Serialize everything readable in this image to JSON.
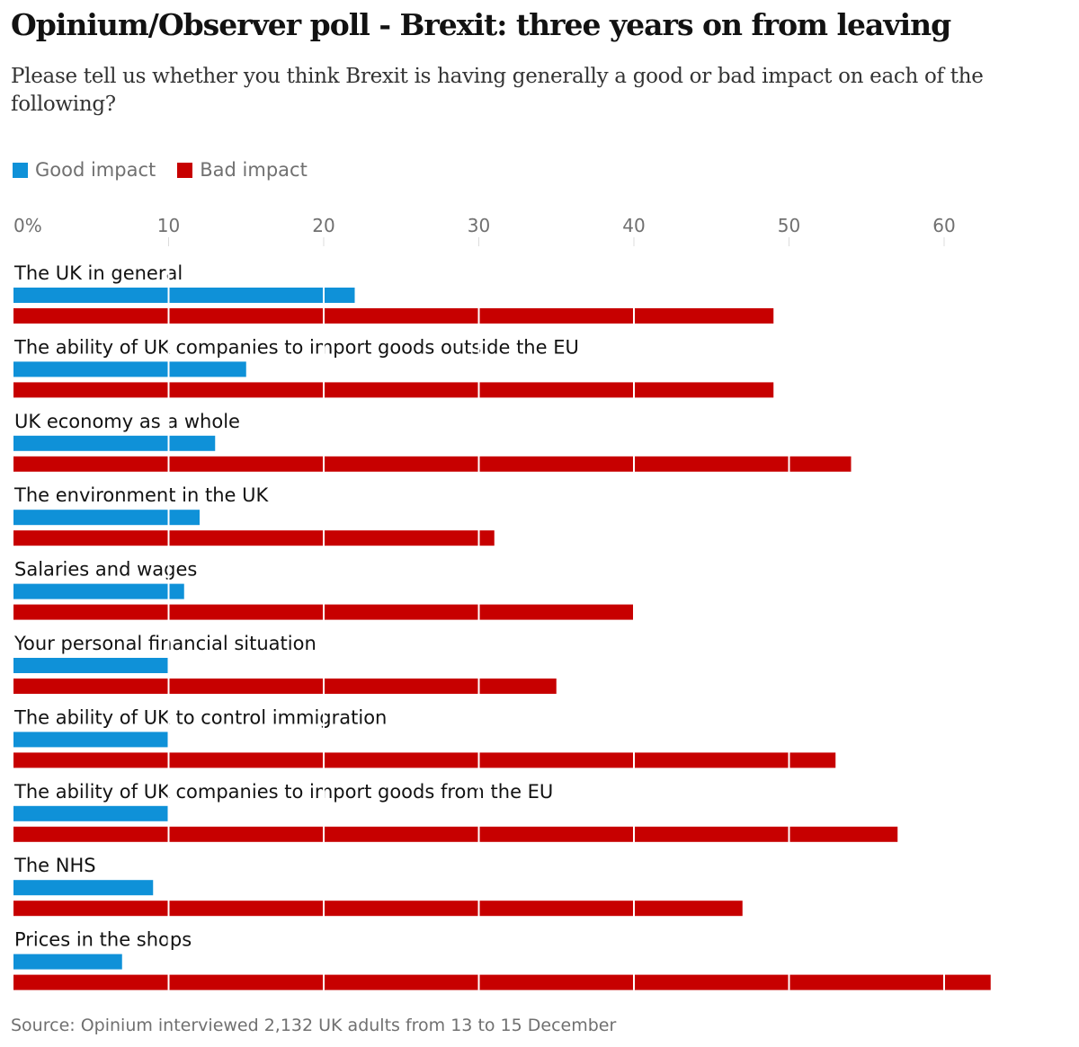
{
  "chart_data": {
    "type": "bar",
    "orientation": "horizontal",
    "title": "Opinium/Observer poll - Brexit: three years on from leaving",
    "subtitle": "Please tell us whether you think Brexit is having generally a good or bad impact on each of the following?",
    "xlim": [
      0,
      63
    ],
    "ticks": [
      {
        "value": 0,
        "label": "0%"
      },
      {
        "value": 10,
        "label": "10"
      },
      {
        "value": 20,
        "label": "20"
      },
      {
        "value": 30,
        "label": "30"
      },
      {
        "value": 40,
        "label": "40"
      },
      {
        "value": 50,
        "label": "50"
      },
      {
        "value": 60,
        "label": "60"
      }
    ],
    "categories": [
      "The UK in general",
      "The ability of UK companies to import goods outside the EU",
      "UK economy as a whole",
      "The environment in the UK",
      "Salaries and wages",
      "Your personal financial situation",
      "The ability of UK to control immigration",
      "The ability of UK companies to import goods from the EU",
      "The NHS",
      "Prices in the shops"
    ],
    "series": [
      {
        "name": "Good impact",
        "color": "#0f91d8",
        "values": [
          22,
          15,
          13,
          12,
          11,
          10,
          10,
          10,
          9,
          7
        ]
      },
      {
        "name": "Bad impact",
        "color": "#c70000",
        "values": [
          49,
          49,
          54,
          31,
          40,
          35,
          53,
          57,
          47,
          63
        ]
      }
    ],
    "grid": true,
    "legend": "top-left",
    "source": "Source: Opinium interviewed 2,132 UK adults from 13 to 15 December"
  }
}
